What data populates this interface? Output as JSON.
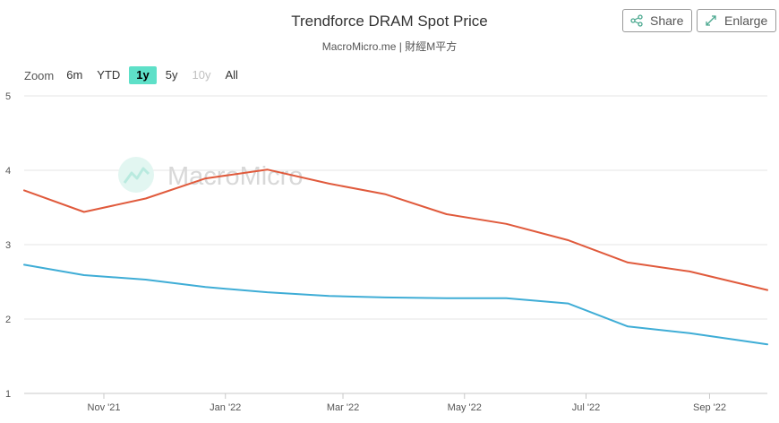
{
  "header": {
    "title": "Trendforce DRAM Spot Price",
    "subtitle": "MacroMicro.me | 財經M平方",
    "share_label": "Share",
    "enlarge_label": "Enlarge"
  },
  "zoom": {
    "label": "Zoom",
    "options": [
      "6m",
      "YTD",
      "1y",
      "5y",
      "10y",
      "All"
    ],
    "selected": "1y",
    "disabled": [
      "10y"
    ]
  },
  "watermark": "MacroMicro",
  "colors": {
    "series_red": "#e05a3c",
    "series_blue": "#3fadd6",
    "zoom_active": "#5ee0c8",
    "grid": "#e6e6e6"
  },
  "chart_data": {
    "type": "line",
    "title": "Trendforce DRAM Spot Price",
    "subtitle": "MacroMicro.me | 財經M平方",
    "xlabel": "",
    "ylabel": "",
    "ylim": [
      1,
      5
    ],
    "yticks": [
      1,
      2,
      3,
      4,
      5
    ],
    "xlim": [
      "2021-09-22",
      "2022-09-30"
    ],
    "xticks": [
      {
        "date": "2021-11-01",
        "label": "Nov '21"
      },
      {
        "date": "2022-01-01",
        "label": "Jan '22"
      },
      {
        "date": "2022-03-01",
        "label": "Mar '22"
      },
      {
        "date": "2022-05-01",
        "label": "May '22"
      },
      {
        "date": "2022-07-01",
        "label": "Jul '22"
      },
      {
        "date": "2022-09-01",
        "label": "Sep '22"
      }
    ],
    "grid": true,
    "legend": "none",
    "series": [
      {
        "color": "#e05a3c",
        "points": [
          {
            "x": "2021-09-22",
            "y": 3.73
          },
          {
            "x": "2021-10-22",
            "y": 3.44
          },
          {
            "x": "2021-11-22",
            "y": 3.62
          },
          {
            "x": "2021-12-22",
            "y": 3.89
          },
          {
            "x": "2022-01-22",
            "y": 4.01
          },
          {
            "x": "2022-02-22",
            "y": 3.82
          },
          {
            "x": "2022-03-22",
            "y": 3.68
          },
          {
            "x": "2022-04-22",
            "y": 3.41
          },
          {
            "x": "2022-05-22",
            "y": 3.28
          },
          {
            "x": "2022-06-22",
            "y": 3.06
          },
          {
            "x": "2022-07-22",
            "y": 2.76
          },
          {
            "x": "2022-08-22",
            "y": 2.64
          },
          {
            "x": "2022-09-30",
            "y": 2.39
          }
        ]
      },
      {
        "color": "#3fadd6",
        "points": [
          {
            "x": "2021-09-22",
            "y": 2.73
          },
          {
            "x": "2021-10-22",
            "y": 2.59
          },
          {
            "x": "2021-11-22",
            "y": 2.53
          },
          {
            "x": "2021-12-22",
            "y": 2.43
          },
          {
            "x": "2022-01-22",
            "y": 2.36
          },
          {
            "x": "2022-02-22",
            "y": 2.31
          },
          {
            "x": "2022-03-22",
            "y": 2.29
          },
          {
            "x": "2022-04-22",
            "y": 2.28
          },
          {
            "x": "2022-05-22",
            "y": 2.28
          },
          {
            "x": "2022-06-22",
            "y": 2.21
          },
          {
            "x": "2022-07-22",
            "y": 1.9
          },
          {
            "x": "2022-08-22",
            "y": 1.81
          },
          {
            "x": "2022-09-30",
            "y": 1.66
          }
        ]
      }
    ]
  }
}
